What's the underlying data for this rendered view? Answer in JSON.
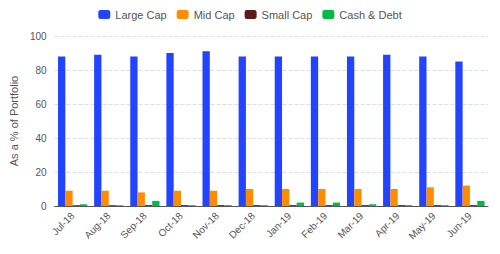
{
  "chart_data": {
    "type": "bar",
    "ylabel": "As a % of Portfolio",
    "categories": [
      "Jul-18",
      "Aug-18",
      "Sep-18",
      "Oct-18",
      "Nov-18",
      "Dec-18",
      "Jan-19",
      "Feb-19",
      "Mar-19",
      "Apr-19",
      "May-19",
      "Jun-19"
    ],
    "series": [
      {
        "name": "Large Cap",
        "color": "#2244ff",
        "values": [
          88,
          89,
          88,
          90,
          91,
          88,
          88,
          88,
          88,
          89,
          88,
          85
        ]
      },
      {
        "name": "Mid Cap",
        "color": "#ff8c00",
        "values": [
          9,
          9,
          8,
          9,
          9,
          10,
          10,
          10,
          10,
          10,
          11,
          12
        ]
      },
      {
        "name": "Small Cap",
        "color": "#5c1a1a",
        "values": [
          0.5,
          0.5,
          0.5,
          0.5,
          0.5,
          0.5,
          0.5,
          0.5,
          0.5,
          0.5,
          0.5,
          0.5
        ]
      },
      {
        "name": "Cash & Debt",
        "color": "#00bb44",
        "values": [
          1.0,
          0.5,
          3.0,
          0.5,
          0.5,
          0.5,
          2.0,
          2.0,
          1.0,
          0.5,
          0.5,
          3.0
        ]
      }
    ],
    "ylim": [
      0,
      100
    ],
    "yticks": [
      0,
      20,
      40,
      60,
      80,
      100
    ],
    "grid": true,
    "legend": "top"
  }
}
